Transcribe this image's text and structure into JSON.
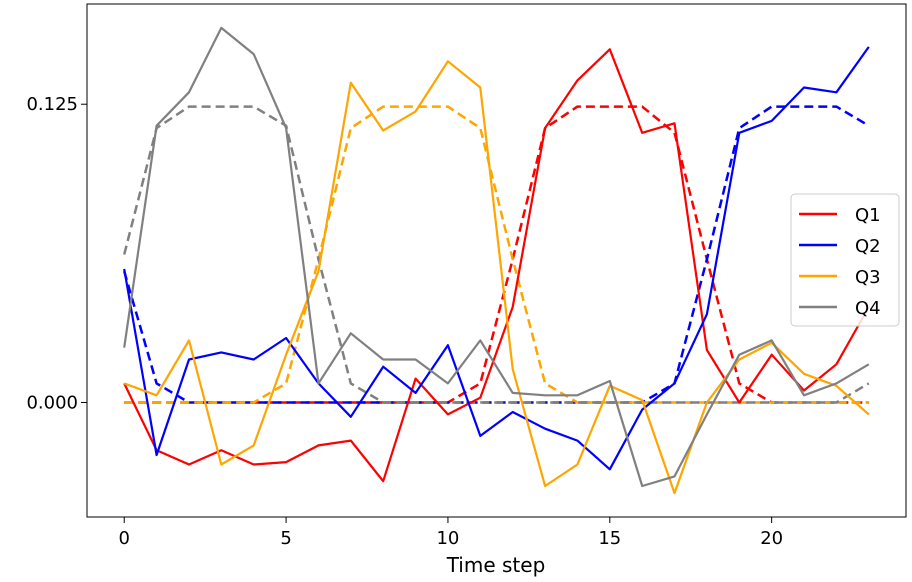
{
  "chart_data": {
    "type": "line",
    "title": "",
    "xlabel": "Time step",
    "ylabel": "",
    "xlim": [
      -1.15,
      24.15
    ],
    "ylim": [
      -0.048,
      0.167
    ],
    "xticks": [
      0,
      5,
      10,
      15,
      20
    ],
    "xtick_labels": [
      "0",
      "5",
      "10",
      "15",
      "20"
    ],
    "yticks": [
      0.0,
      0.125
    ],
    "ytick_labels": [
      "0.000",
      "0.125"
    ],
    "grid": false,
    "legend_position": "center-right",
    "x": [
      0,
      1,
      2,
      3,
      4,
      5,
      6,
      7,
      8,
      9,
      10,
      11,
      12,
      13,
      14,
      15,
      16,
      17,
      18,
      19,
      20,
      21,
      22,
      23
    ],
    "series": [
      {
        "name": "Q1",
        "color": "#ff0000",
        "solid": [
          0.008,
          -0.02,
          -0.026,
          -0.02,
          -0.026,
          -0.025,
          -0.018,
          -0.016,
          -0.033,
          0.01,
          -0.005,
          0.002,
          0.04,
          0.115,
          0.135,
          0.148,
          0.113,
          0.117,
          0.022,
          0.0,
          0.02,
          0.005,
          0.016,
          0.04
        ],
        "dashed": [
          0.0,
          0.0,
          0.0,
          0.0,
          0.0,
          0.0,
          0.0,
          0.0,
          0.0,
          0.0,
          0.0,
          0.008,
          0.06,
          0.115,
          0.124,
          0.124,
          0.124,
          0.113,
          0.06,
          0.008,
          0.0,
          0.0,
          0.0,
          0.0
        ]
      },
      {
        "name": "Q2",
        "color": "#0000ff",
        "solid": [
          0.056,
          -0.022,
          0.018,
          0.021,
          0.018,
          0.027,
          0.008,
          -0.006,
          0.015,
          0.004,
          0.024,
          -0.014,
          -0.004,
          -0.011,
          -0.016,
          -0.028,
          -0.003,
          0.008,
          0.037,
          0.113,
          0.118,
          0.132,
          0.13,
          0.149
        ],
        "dashed": [
          0.055,
          0.008,
          0.0,
          0.0,
          0.0,
          0.0,
          0.0,
          0.0,
          0.0,
          0.0,
          0.0,
          0.0,
          0.0,
          0.0,
          0.0,
          0.0,
          0.0,
          0.008,
          0.06,
          0.115,
          0.124,
          0.124,
          0.124,
          0.116
        ]
      },
      {
        "name": "Q3",
        "color": "#ffa500",
        "solid": [
          0.008,
          0.003,
          0.026,
          -0.026,
          -0.018,
          0.02,
          0.055,
          0.134,
          0.114,
          0.122,
          0.143,
          0.132,
          0.014,
          -0.035,
          -0.026,
          0.007,
          0.001,
          -0.038,
          0.0,
          0.018,
          0.025,
          0.012,
          0.007,
          -0.005
        ],
        "dashed": [
          0.0,
          0.0,
          0.0,
          0.0,
          0.0,
          0.008,
          0.06,
          0.115,
          0.124,
          0.124,
          0.124,
          0.115,
          0.06,
          0.008,
          0.0,
          0.0,
          0.0,
          0.0,
          0.0,
          0.0,
          0.0,
          0.0,
          0.0,
          0.0
        ]
      },
      {
        "name": "Q4",
        "color": "#808080",
        "solid": [
          0.023,
          0.116,
          0.13,
          0.157,
          0.146,
          0.115,
          0.008,
          0.029,
          0.018,
          0.018,
          0.008,
          0.026,
          0.004,
          0.003,
          0.003,
          0.009,
          -0.035,
          -0.031,
          -0.005,
          0.02,
          0.026,
          0.003,
          0.008,
          0.016
        ],
        "dashed": [
          0.062,
          0.115,
          0.124,
          0.124,
          0.124,
          0.116,
          0.06,
          0.008,
          0.0,
          0.0,
          0.0,
          0.0,
          0.0,
          0.0,
          0.0,
          0.0,
          0.0,
          0.0,
          0.0,
          0.0,
          0.0,
          0.0,
          0.0,
          0.008
        ]
      }
    ]
  }
}
